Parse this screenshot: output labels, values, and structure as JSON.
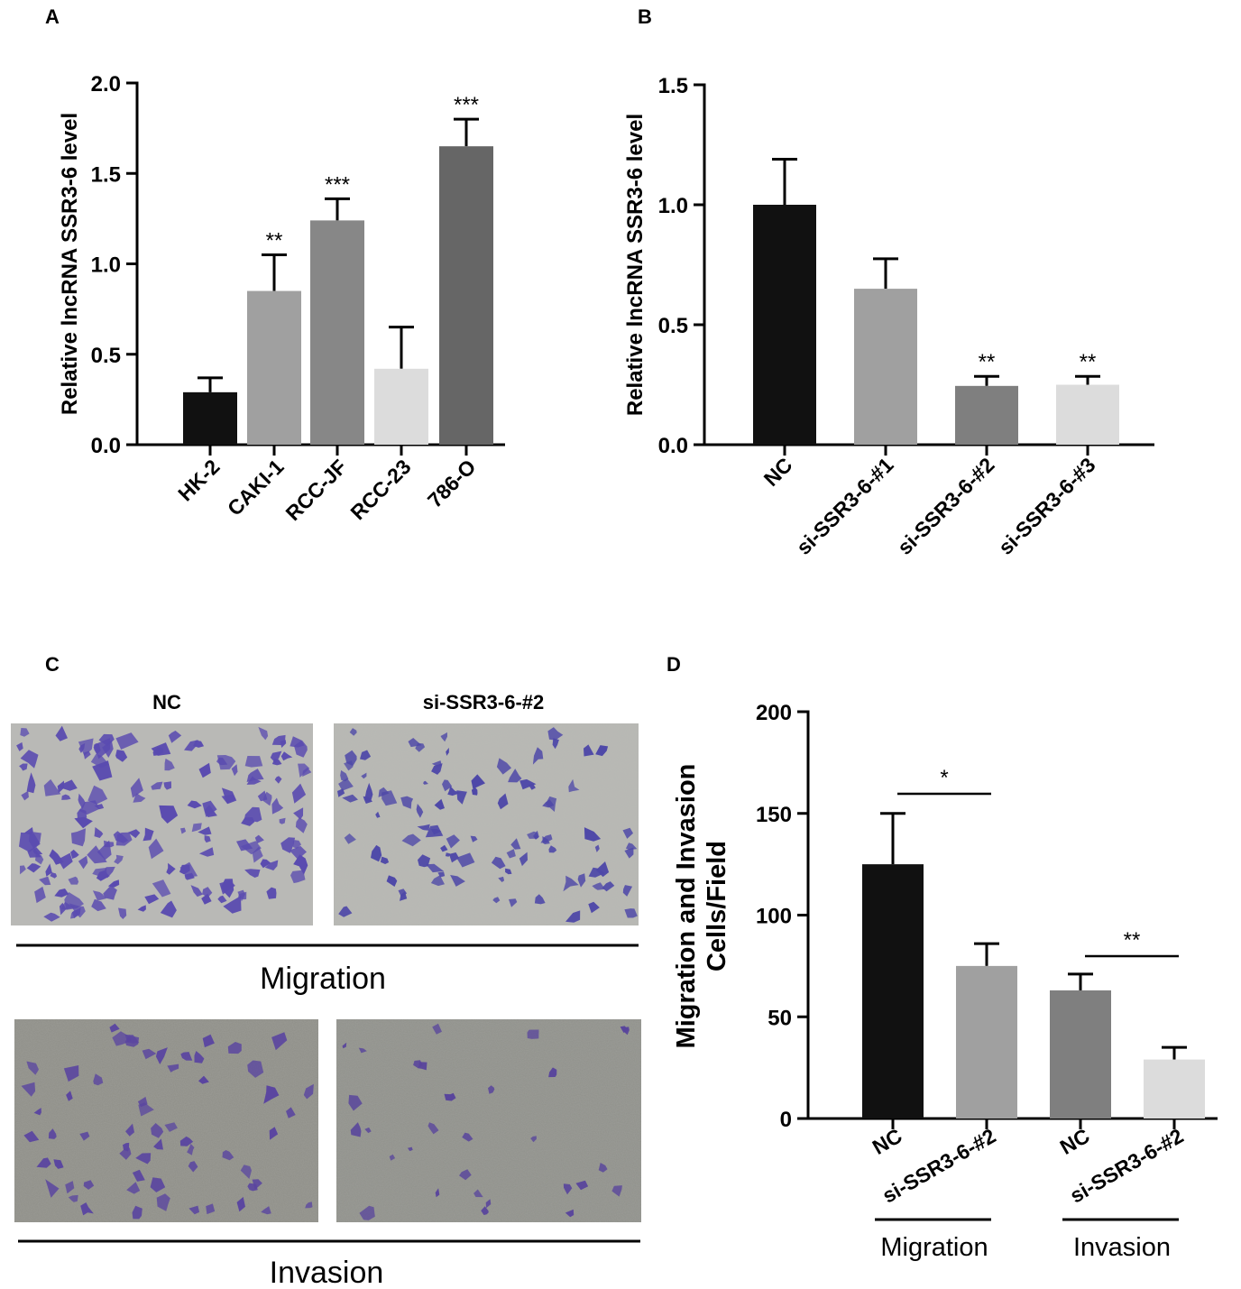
{
  "panels": {
    "A": "A",
    "B": "B",
    "C": "C",
    "D": "D"
  },
  "chart_data": [
    {
      "panel": "A",
      "type": "bar",
      "ylabel": "Relative lncRNA SSR3-6 level",
      "ylim": [
        0,
        2.0
      ],
      "yticks": [
        "0.0",
        "0.5",
        "1.0",
        "1.5",
        "2.0"
      ],
      "categories": [
        "HK-2",
        "CAKI-1",
        "RCC-JF",
        "RCC-23",
        "786-O"
      ],
      "values": [
        0.29,
        0.85,
        1.24,
        0.42,
        1.65
      ],
      "errors": [
        0.08,
        0.2,
        0.12,
        0.23,
        0.15
      ],
      "colors": [
        "#111111",
        "#a0a0a0",
        "#878787",
        "#dcdcdc",
        "#666666"
      ],
      "significance": [
        "",
        "**",
        "***",
        "",
        "***"
      ]
    },
    {
      "panel": "B",
      "type": "bar",
      "ylabel": "Relative lncRNA SSR3-6 level",
      "ylim": [
        0,
        1.5
      ],
      "yticks": [
        "0.0",
        "0.5",
        "1.0",
        "1.5"
      ],
      "categories": [
        "NC",
        "si-SSR3-6-#1",
        "si-SSR3-6-#2",
        "si-SSR3-6-#3"
      ],
      "values": [
        1.0,
        0.65,
        0.245,
        0.25
      ],
      "errors": [
        0.19,
        0.125,
        0.04,
        0.035
      ],
      "colors": [
        "#111111",
        "#a0a0a0",
        "#7f7f7f",
        "#dcdcdc"
      ],
      "significance": [
        "",
        "",
        "**",
        "**"
      ]
    },
    {
      "panel": "D",
      "type": "bar",
      "ylabel": [
        "Migration and Invasion",
        "Cells/Field"
      ],
      "ylim": [
        0,
        200
      ],
      "yticks": [
        "0",
        "50",
        "100",
        "150",
        "200"
      ],
      "categories": [
        "NC",
        "si-SSR3-6-#2",
        "NC",
        "si-SSR3-6-#2"
      ],
      "values": [
        125,
        75,
        63,
        29
      ],
      "errors": [
        25,
        11,
        8,
        6
      ],
      "colors": [
        "#111111",
        "#a0a0a0",
        "#7f7f7f",
        "#dcdcdc"
      ],
      "groups": [
        "Migration",
        "Invasion"
      ],
      "comparisons": [
        "*",
        "**"
      ]
    }
  ],
  "micrographs": {
    "titles": [
      "NC",
      "si-SSR3-6-#2"
    ],
    "rows": [
      "Migration",
      "Invasion"
    ]
  }
}
